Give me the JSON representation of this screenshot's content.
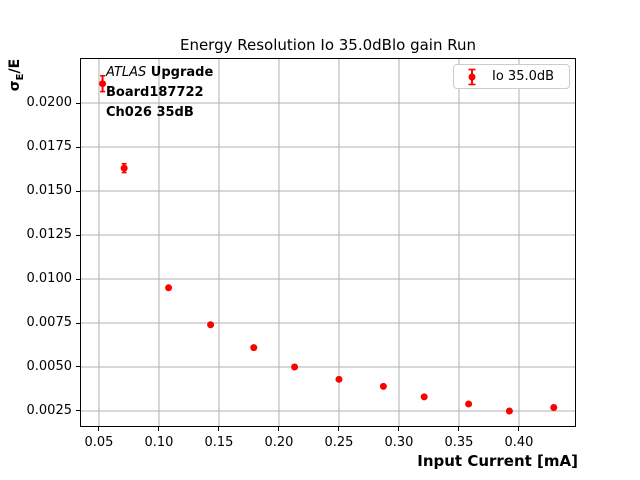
{
  "figure": {
    "title": "Energy Resolution Io 35.0dBlo gain Run",
    "xlabel": "Input Current [mA]",
    "ylabel": {
      "sigma": "σ",
      "subscript": "E",
      "rest": "/E"
    },
    "annotation": {
      "line1_italic": "ATLAS",
      "line1_bold": " Upgrade",
      "line2": "Board187722",
      "line3": "Ch026 35dB"
    },
    "legend": {
      "label": "Io 35.0dB"
    }
  },
  "chart_data": {
    "type": "scatter",
    "title": "Energy Resolution Io 35.0dBlo gain Run",
    "xlabel": "Input Current [mA]",
    "ylabel": "σE/E",
    "legend_entries": [
      "Io 35.0dB"
    ],
    "legend_position": "upper right",
    "grid": true,
    "xlim": [
      0.0342,
      0.4475
    ],
    "ylim": [
      0.00159,
      0.02256
    ],
    "xticks": [
      {
        "value": 0.05,
        "label": "0.05"
      },
      {
        "value": 0.1,
        "label": "0.10"
      },
      {
        "value": 0.15,
        "label": "0.15"
      },
      {
        "value": 0.2,
        "label": "0.20"
      },
      {
        "value": 0.25,
        "label": "0.25"
      },
      {
        "value": 0.3,
        "label": "0.30"
      },
      {
        "value": 0.35,
        "label": "0.35"
      },
      {
        "value": 0.4,
        "label": "0.40"
      }
    ],
    "yticks": [
      {
        "value": 0.0025,
        "label": "0.0025"
      },
      {
        "value": 0.005,
        "label": "0.0050"
      },
      {
        "value": 0.0075,
        "label": "0.0075"
      },
      {
        "value": 0.01,
        "label": "0.0100"
      },
      {
        "value": 0.0125,
        "label": "0.0125"
      },
      {
        "value": 0.015,
        "label": "0.0150"
      },
      {
        "value": 0.0175,
        "label": "0.0175"
      },
      {
        "value": 0.02,
        "label": "0.0200"
      }
    ],
    "series": [
      {
        "name": "Io 35.0dB",
        "color": "#ff0000",
        "marker": "circle-with-errorbar",
        "points": [
          {
            "x": 0.053,
            "y": 0.0211,
            "yerr": 0.00045
          },
          {
            "x": 0.071,
            "y": 0.0163,
            "yerr": 0.00025
          },
          {
            "x": 0.108,
            "y": 0.0095,
            "yerr": 8e-05
          },
          {
            "x": 0.143,
            "y": 0.0074,
            "yerr": 8e-05
          },
          {
            "x": 0.179,
            "y": 0.0061,
            "yerr": 8e-05
          },
          {
            "x": 0.213,
            "y": 0.005,
            "yerr": 8e-05
          },
          {
            "x": 0.25,
            "y": 0.0043,
            "yerr": 8e-05
          },
          {
            "x": 0.287,
            "y": 0.0039,
            "yerr": 8e-05
          },
          {
            "x": 0.321,
            "y": 0.0033,
            "yerr": 8e-05
          },
          {
            "x": 0.358,
            "y": 0.0029,
            "yerr": 8e-05
          },
          {
            "x": 0.392,
            "y": 0.0025,
            "yerr": 8e-05
          },
          {
            "x": 0.429,
            "y": 0.0027,
            "yerr": 8e-05
          }
        ]
      }
    ],
    "colors": {
      "marker": "#ff0000",
      "grid": "#b0b0b0",
      "spine": "#000000",
      "background": "#ffffff"
    }
  }
}
